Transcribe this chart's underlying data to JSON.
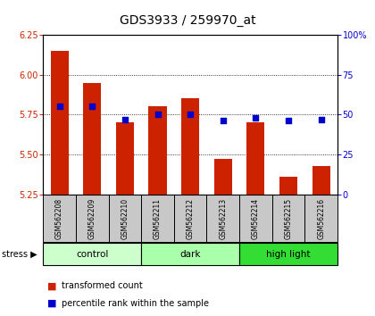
{
  "title": "GDS3933 / 259970_at",
  "samples": [
    "GSM562208",
    "GSM562209",
    "GSM562210",
    "GSM562211",
    "GSM562212",
    "GSM562213",
    "GSM562214",
    "GSM562215",
    "GSM562216"
  ],
  "red_values": [
    6.15,
    5.95,
    5.7,
    5.8,
    5.85,
    5.47,
    5.7,
    5.36,
    5.43
  ],
  "blue_values": [
    55,
    55,
    47,
    50,
    50,
    46,
    48,
    46,
    47
  ],
  "ylim_left": [
    5.25,
    6.25
  ],
  "ylim_right": [
    0,
    100
  ],
  "yticks_left": [
    5.25,
    5.5,
    5.75,
    6.0,
    6.25
  ],
  "yticks_right": [
    0,
    25,
    50,
    75,
    100
  ],
  "groups": [
    {
      "label": "control",
      "indices": [
        0,
        1,
        2
      ],
      "color": "#ccffcc"
    },
    {
      "label": "dark",
      "indices": [
        3,
        4,
        5
      ],
      "color": "#aaffaa"
    },
    {
      "label": "high light",
      "indices": [
        6,
        7,
        8
      ],
      "color": "#33dd33"
    }
  ],
  "bar_color": "#cc2200",
  "dot_color": "#0000cc",
  "baseline": 5.25,
  "bar_width": 0.55,
  "bg_color": "#ffffff",
  "tick_area_bg": "#c8c8c8",
  "left_tick_color": "#cc2200",
  "right_tick_color": "#0000cc",
  "title_fontsize": 10,
  "tick_fontsize": 7,
  "sample_fontsize": 5.5,
  "group_fontsize": 7.5,
  "legend_fontsize": 7
}
